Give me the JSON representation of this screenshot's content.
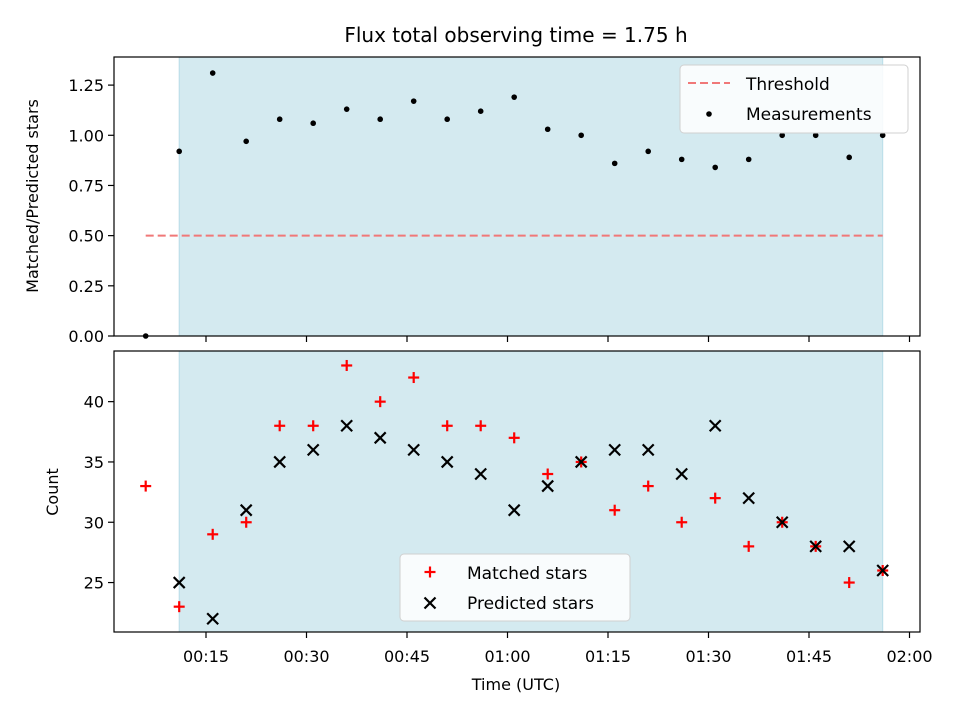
{
  "title": "Flux total observing time = 1.75 h",
  "chart_data": [
    {
      "type": "scatter",
      "ylabel": "Matched/Predicted stars",
      "ylim": [
        0,
        1.39
      ],
      "yticks": [
        "0.00",
        "0.25",
        "0.50",
        "0.75",
        "1.00",
        "1.25"
      ],
      "ytick_values": [
        0,
        0.25,
        0.5,
        0.75,
        1.0,
        1.25
      ],
      "observing_window": [
        "00:11",
        "01:56"
      ],
      "threshold": {
        "name": "Threshold",
        "value": 0.5,
        "x_range": [
          "00:06",
          "01:56"
        ],
        "color": "#f07878"
      },
      "measurements": {
        "name": "Measurements",
        "color": "#000000",
        "points": [
          [
            "00:06",
            0.0
          ],
          [
            "00:11",
            0.92
          ],
          [
            "00:16",
            1.31
          ],
          [
            "00:21",
            0.97
          ],
          [
            "00:26",
            1.08
          ],
          [
            "00:31",
            1.06
          ],
          [
            "00:36",
            1.13
          ],
          [
            "00:41",
            1.08
          ],
          [
            "00:46",
            1.17
          ],
          [
            "00:51",
            1.08
          ],
          [
            "00:56",
            1.12
          ],
          [
            "01:01",
            1.19
          ],
          [
            "01:06",
            1.03
          ],
          [
            "01:11",
            1.0
          ],
          [
            "01:16",
            0.86
          ],
          [
            "01:21",
            0.92
          ],
          [
            "01:26",
            0.88
          ],
          [
            "01:31",
            0.84
          ],
          [
            "01:36",
            0.88
          ],
          [
            "01:41",
            1.0
          ],
          [
            "01:46",
            1.0
          ],
          [
            "01:51",
            0.89
          ],
          [
            "01:56",
            1.0
          ]
        ]
      },
      "legend": {
        "placement": "top-right",
        "entries": [
          "Threshold",
          "Measurements"
        ]
      },
      "grid": false
    },
    {
      "type": "scatter",
      "xlabel": "Time (UTC)",
      "ylabel": "Count",
      "ylim": [
        20.9,
        44.2
      ],
      "yticks": [
        "25",
        "30",
        "35",
        "40"
      ],
      "ytick_values": [
        25,
        30,
        35,
        40
      ],
      "xticks": [
        "00:15",
        "00:30",
        "00:45",
        "01:00",
        "01:15",
        "01:30",
        "01:45",
        "02:00"
      ],
      "observing_window": [
        "00:11",
        "01:56"
      ],
      "series": [
        {
          "name": "Matched stars",
          "marker": "plus",
          "color": "#ff0000",
          "points": [
            [
              "00:06",
              33
            ],
            [
              "00:11",
              23
            ],
            [
              "00:16",
              29
            ],
            [
              "00:21",
              30
            ],
            [
              "00:26",
              38
            ],
            [
              "00:31",
              38
            ],
            [
              "00:36",
              43
            ],
            [
              "00:41",
              40
            ],
            [
              "00:46",
              42
            ],
            [
              "00:51",
              38
            ],
            [
              "00:56",
              38
            ],
            [
              "01:01",
              37
            ],
            [
              "01:06",
              34
            ],
            [
              "01:11",
              35
            ],
            [
              "01:16",
              31
            ],
            [
              "01:21",
              33
            ],
            [
              "01:26",
              30
            ],
            [
              "01:31",
              32
            ],
            [
              "01:36",
              28
            ],
            [
              "01:41",
              30
            ],
            [
              "01:46",
              28
            ],
            [
              "01:51",
              25
            ],
            [
              "01:56",
              26
            ]
          ]
        },
        {
          "name": "Predicted stars",
          "marker": "x",
          "color": "#000000",
          "points": [
            [
              "00:11",
              25
            ],
            [
              "00:16",
              22
            ],
            [
              "00:21",
              31
            ],
            [
              "00:26",
              35
            ],
            [
              "00:31",
              36
            ],
            [
              "00:36",
              38
            ],
            [
              "00:41",
              37
            ],
            [
              "00:46",
              36
            ],
            [
              "00:51",
              35
            ],
            [
              "00:56",
              34
            ],
            [
              "01:01",
              31
            ],
            [
              "01:06",
              33
            ],
            [
              "01:11",
              35
            ],
            [
              "01:16",
              36
            ],
            [
              "01:21",
              36
            ],
            [
              "01:26",
              34
            ],
            [
              "01:31",
              38
            ],
            [
              "01:36",
              32
            ],
            [
              "01:41",
              30
            ],
            [
              "01:46",
              28
            ],
            [
              "01:51",
              28
            ],
            [
              "01:56",
              26
            ]
          ]
        }
      ],
      "legend": {
        "placement": "bottom-center",
        "entries": [
          "Matched stars",
          "Predicted stars"
        ]
      },
      "grid": false
    }
  ],
  "colors": {
    "window_fill": "#d4eaf0",
    "window_edge": "#b8dde8"
  }
}
